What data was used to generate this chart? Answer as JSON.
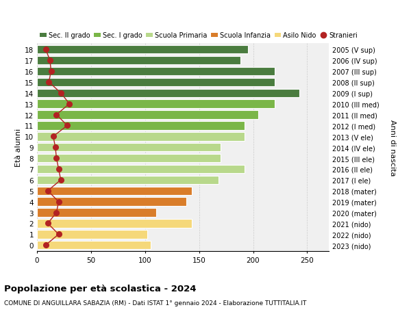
{
  "ages": [
    18,
    17,
    16,
    15,
    14,
    13,
    12,
    11,
    10,
    9,
    8,
    7,
    6,
    5,
    4,
    3,
    2,
    1,
    0
  ],
  "right_labels": [
    "2005 (V sup)",
    "2006 (IV sup)",
    "2007 (III sup)",
    "2008 (II sup)",
    "2009 (I sup)",
    "2010 (III med)",
    "2011 (II med)",
    "2012 (I med)",
    "2013 (V ele)",
    "2014 (IV ele)",
    "2015 (III ele)",
    "2016 (II ele)",
    "2017 (I ele)",
    "2018 (mater)",
    "2019 (mater)",
    "2020 (mater)",
    "2021 (nido)",
    "2022 (nido)",
    "2023 (nido)"
  ],
  "bar_values": [
    195,
    188,
    220,
    220,
    243,
    220,
    205,
    192,
    192,
    170,
    170,
    192,
    168,
    143,
    138,
    110,
    143,
    102,
    105
  ],
  "bar_colors": [
    "#4a7c3f",
    "#4a7c3f",
    "#4a7c3f",
    "#4a7c3f",
    "#4a7c3f",
    "#7ab648",
    "#7ab648",
    "#7ab648",
    "#b8d88b",
    "#b8d88b",
    "#b8d88b",
    "#b8d88b",
    "#b8d88b",
    "#d97d2a",
    "#d97d2a",
    "#d97d2a",
    "#f5d87a",
    "#f5d87a",
    "#f5d87a"
  ],
  "stranieri_values": [
    8,
    12,
    13,
    11,
    22,
    30,
    18,
    28,
    15,
    17,
    18,
    20,
    22,
    10,
    20,
    18,
    10,
    20,
    8
  ],
  "legend_labels": [
    "Sec. II grado",
    "Sec. I grado",
    "Scuola Primaria",
    "Scuola Infanzia",
    "Asilo Nido",
    "Stranieri"
  ],
  "legend_colors": [
    "#4a7c3f",
    "#7ab648",
    "#b8d88b",
    "#d97d2a",
    "#f5d87a",
    "#b22222"
  ],
  "ylabel": "Età alunni",
  "ylabel_right": "Anni di nascita",
  "title": "Popolazione per età scolastica - 2024",
  "subtitle": "COMUNE DI ANGUILLARA SABAZIA (RM) - Dati ISTAT 1° gennaio 2024 - Elaborazione TUTTITALIA.IT",
  "xlim": [
    0,
    270
  ],
  "xticks": [
    0,
    50,
    100,
    150,
    200,
    250
  ],
  "bg_color": "#ffffff",
  "plot_bg_color": "#f0f0f0",
  "grid_color": "#cccccc",
  "bar_height": 0.78,
  "stranieri_color": "#b22222",
  "stranieri_marker_size": 5.5
}
